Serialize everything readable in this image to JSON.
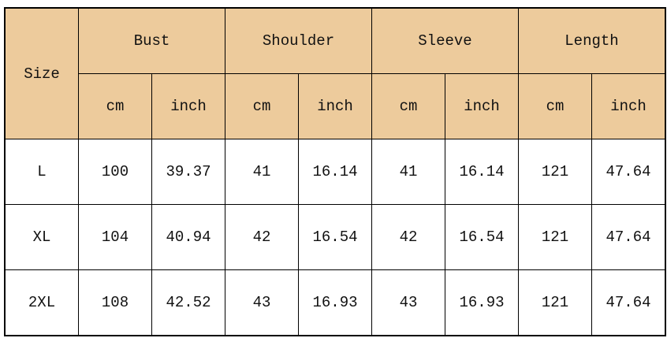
{
  "header": {
    "size": "Size",
    "groups": [
      "Bust",
      "Shoulder",
      "Sleeve",
      "Length"
    ],
    "units": [
      "cm",
      "inch"
    ]
  },
  "colors": {
    "header_bg": "#EDCB9C",
    "body_bg": "#FFFFFF",
    "border": "#000000"
  },
  "rows": [
    {
      "size": "L",
      "values": [
        "100",
        "39.37",
        "41",
        "16.14",
        "41",
        "16.14",
        "121",
        "47.64"
      ]
    },
    {
      "size": "XL",
      "values": [
        "104",
        "40.94",
        "42",
        "16.54",
        "42",
        "16.54",
        "121",
        "47.64"
      ]
    },
    {
      "size": "2XL",
      "values": [
        "108",
        "42.52",
        "43",
        "16.93",
        "43",
        "16.93",
        "121",
        "47.64"
      ]
    }
  ]
}
